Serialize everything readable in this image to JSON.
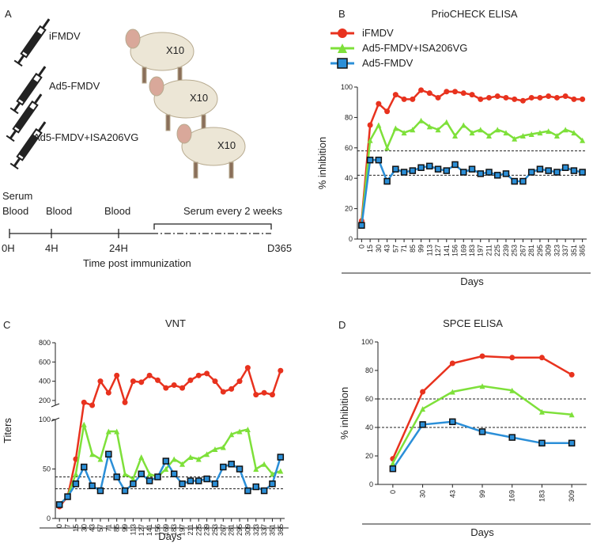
{
  "panel_a": {
    "panel": "A",
    "groups": [
      "iFMDV",
      "Ad5-FMDV",
      "Ad5-FMDV+ISA206VG"
    ],
    "animals": [
      "X10",
      "X10",
      "X10"
    ],
    "samples": [
      "Serum",
      "Blood",
      "Blood",
      "Blood",
      "Serum every 2 weeks"
    ],
    "times": [
      "0H",
      "4H",
      "24H",
      "D365"
    ],
    "axis_label": "Time post immunization"
  },
  "chart_data": [
    {
      "type": "line",
      "panel": "B",
      "title": "PrioCHECK ELISA",
      "x_label": "Days",
      "y_label": "% inhibition",
      "categories": [
        "0",
        "15",
        "30",
        "43",
        "57",
        "71",
        "85",
        "99",
        "113",
        "127",
        "141",
        "156",
        "169",
        "183",
        "197",
        "211",
        "225",
        "239",
        "253",
        "267",
        "281",
        "295",
        "309",
        "323",
        "337",
        "351",
        "365"
      ],
      "series": [
        {
          "name": "iFMDV",
          "color": "#e8321e",
          "marker": "circle",
          "values": [
            12,
            75,
            89,
            84,
            95,
            92,
            92,
            98,
            96,
            93,
            97,
            97,
            96,
            95,
            92,
            93,
            94,
            93,
            92,
            91,
            93,
            93,
            94,
            93,
            94,
            92,
            92
          ]
        },
        {
          "name": "Ad5-FMDV+ISA206VG",
          "color": "#7ee03a",
          "marker": "triangle",
          "values": [
            10,
            65,
            75,
            60,
            73,
            70,
            72,
            78,
            74,
            72,
            77,
            68,
            75,
            70,
            72,
            68,
            72,
            70,
            66,
            68,
            69,
            70,
            71,
            68,
            72,
            70,
            65
          ]
        },
        {
          "name": "Ad5-FMDV",
          "color": "#2b8fd8",
          "marker": "square",
          "values": [
            9,
            52,
            52,
            38,
            46,
            44,
            45,
            47,
            48,
            46,
            45,
            49,
            44,
            46,
            43,
            44,
            42,
            43,
            38,
            38,
            44,
            46,
            45,
            44,
            47,
            45,
            44
          ]
        }
      ],
      "ylim": [
        0,
        100
      ],
      "yticks": [
        0,
        20,
        40,
        60,
        80,
        100
      ],
      "reference_lines": [
        58,
        42
      ],
      "legend": "top-left"
    },
    {
      "type": "line",
      "panel": "C",
      "title": "VNT",
      "x_label": "Days",
      "y_label": "Titers",
      "categories": [
        "0",
        "7",
        "15",
        "30",
        "43",
        "57",
        "71",
        "85",
        "99",
        "113",
        "127",
        "141",
        "156",
        "169",
        "183",
        "197",
        "211",
        "225",
        "239",
        "253",
        "267",
        "281",
        "295",
        "309",
        "323",
        "337",
        "351",
        "365"
      ],
      "series": [
        {
          "name": "iFMDV",
          "color": "#e8321e",
          "marker": "circle",
          "values": [
            12,
            22,
            60,
            180,
            150,
            400,
            280,
            460,
            180,
            400,
            390,
            460,
            410,
            330,
            360,
            330,
            410,
            460,
            480,
            400,
            290,
            320,
            400,
            540,
            260,
            280,
            260,
            510
          ]
        },
        {
          "name": "Ad5-FMDV+ISA206VG",
          "color": "#7ee03a",
          "marker": "triangle",
          "values": [
            14,
            22,
            45,
            95,
            65,
            60,
            88,
            88,
            45,
            40,
            62,
            45,
            42,
            50,
            60,
            55,
            62,
            60,
            65,
            70,
            72,
            85,
            88,
            90,
            50,
            55,
            45,
            48
          ]
        },
        {
          "name": "Ad5-FMDV",
          "color": "#2b8fd8",
          "marker": "square",
          "values": [
            14,
            22,
            35,
            52,
            33,
            28,
            65,
            42,
            28,
            35,
            45,
            38,
            42,
            58,
            45,
            35,
            38,
            38,
            40,
            35,
            52,
            55,
            50,
            28,
            32,
            28,
            35,
            62
          ]
        }
      ],
      "ylim": [
        0,
        800
      ],
      "axis_break": [
        100,
        150
      ],
      "yticks": [
        0,
        50,
        100,
        200,
        400,
        600,
        800
      ],
      "reference_lines": [
        42,
        30
      ]
    },
    {
      "type": "line",
      "panel": "D",
      "title": "SPCE ELISA",
      "x_label": "Days",
      "y_label": "% inhibition",
      "categories": [
        "0",
        "30",
        "43",
        "99",
        "169",
        "183",
        "309"
      ],
      "series": [
        {
          "name": "iFMDV",
          "color": "#e8321e",
          "marker": "circle",
          "values": [
            18,
            65,
            85,
            90,
            89,
            89,
            77
          ]
        },
        {
          "name": "Ad5-FMDV+ISA206VG",
          "color": "#7ee03a",
          "marker": "triangle",
          "values": [
            15,
            53,
            65,
            69,
            66,
            51,
            49
          ]
        },
        {
          "name": "Ad5-FMDV",
          "color": "#2b8fd8",
          "marker": "square",
          "values": [
            11,
            42,
            44,
            37,
            33,
            29,
            29
          ]
        }
      ],
      "ylim": [
        0,
        100
      ],
      "yticks": [
        0,
        20,
        40,
        60,
        80,
        100
      ],
      "reference_lines": [
        60,
        40
      ]
    }
  ]
}
